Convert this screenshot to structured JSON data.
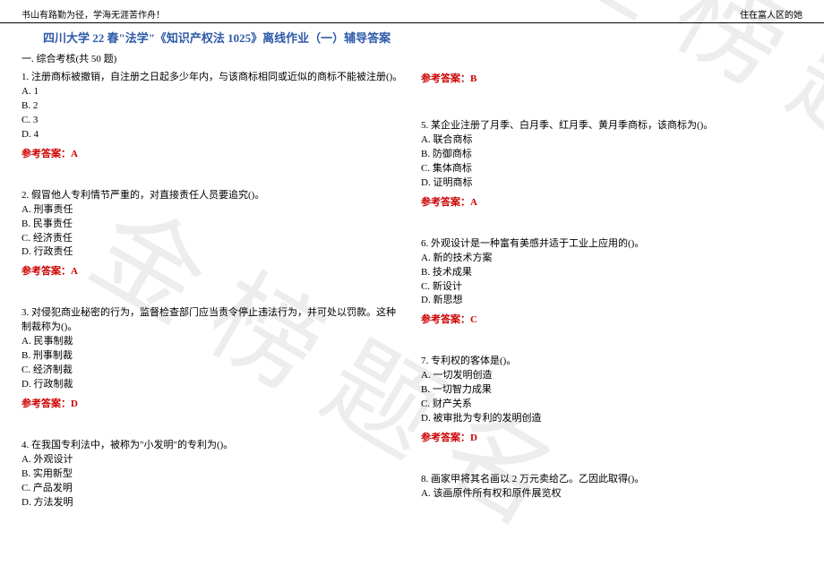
{
  "header": {
    "left": "书山有路勤为径，学海无涯苦作舟！",
    "right": "住在富人区的她"
  },
  "title": "四川大学 22 春\"法学\"《知识产权法 1025》离线作业（一）辅导答案",
  "section": "一. 综合考核(共 50 题)",
  "watermark": "金榜题名",
  "answer_label": "参考答案：",
  "left_questions": [
    {
      "q": "1. 注册商标被撤销，自注册之日起多少年内，与该商标相同或近似的商标不能被注册()。",
      "opts": [
        "A. 1",
        "B. 2",
        "C. 3",
        "D. 4"
      ],
      "ans": "A"
    },
    {
      "q": "2. 假冒他人专利情节严重的，对直接责任人员要追究()。",
      "opts": [
        "A. 刑事责任",
        "B. 民事责任",
        "C. 经济责任",
        "D. 行政责任"
      ],
      "ans": "A"
    },
    {
      "q": "3. 对侵犯商业秘密的行为，监督检查部门应当责令停止违法行为，并可处以罚款。这种制裁称为()。",
      "opts": [
        "A. 民事制裁",
        "B. 刑事制裁",
        "C. 经济制裁",
        "D. 行政制裁"
      ],
      "ans": "D"
    },
    {
      "q": "4. 在我国专利法中，被称为\"小发明\"的专利为()。",
      "opts": [
        "A. 外观设计",
        "B. 实用新型",
        "C. 产品发明",
        "D. 方法发明"
      ],
      "ans": null
    }
  ],
  "right_questions": [
    {
      "pre_ans": "B",
      "q": "5. 某企业注册了月季、白月季、红月季、黄月季商标，该商标为()。",
      "opts": [
        "A. 联合商标",
        "B. 防御商标",
        "C. 集体商标",
        "D. 证明商标"
      ],
      "ans": "A"
    },
    {
      "q": "6. 外观设计是一种富有美感并适于工业上应用的()。",
      "opts": [
        "A. 新的技术方案",
        "B. 技术成果",
        "C. 新设计",
        "D. 新思想"
      ],
      "ans": "C"
    },
    {
      "q": "7. 专利权的客体是()。",
      "opts": [
        "A. 一切发明创造",
        "B. 一切智力成果",
        "C. 财产关系",
        "D. 被审批为专利的发明创造"
      ],
      "ans": "D"
    },
    {
      "q": "8. 画家甲将其名画以 2 万元卖给乙。乙因此取得()。",
      "opts": [
        "A. 该画原件所有权和原件展览权"
      ],
      "ans": null
    }
  ]
}
